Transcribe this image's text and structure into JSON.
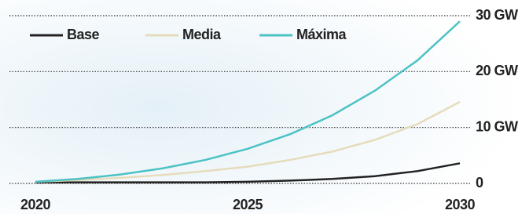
{
  "chart_data": {
    "type": "line",
    "x": [
      2020,
      2021,
      2022,
      2023,
      2024,
      2025,
      2026,
      2027,
      2028,
      2029,
      2030
    ],
    "series": [
      {
        "name": "Base",
        "color": "#222222",
        "values": [
          0.2,
          0.2,
          0.2,
          0.2,
          0.2,
          0.3,
          0.5,
          0.8,
          1.3,
          2.2,
          3.6
        ]
      },
      {
        "name": "Media",
        "color": "#e6dcbc",
        "values": [
          0.3,
          0.6,
          1,
          1.5,
          2.2,
          3,
          4.2,
          5.7,
          7.8,
          10.6,
          14.6
        ]
      },
      {
        "name": "Máxima",
        "color": "#4cc2c4",
        "values": [
          0.3,
          0.8,
          1.6,
          2.7,
          4.2,
          6.2,
          8.8,
          12.2,
          16.6,
          22,
          29
        ]
      }
    ],
    "xlim": [
      2020,
      2030
    ],
    "xticks": [
      2020,
      2025,
      2030
    ],
    "ylim": [
      0,
      30
    ],
    "yticks": [
      0,
      {
        "value": 10,
        "label": "10 GW"
      },
      {
        "value": 20,
        "label": "20 GW"
      },
      {
        "value": 30,
        "label": "30 GW"
      }
    ],
    "grid": true
  }
}
